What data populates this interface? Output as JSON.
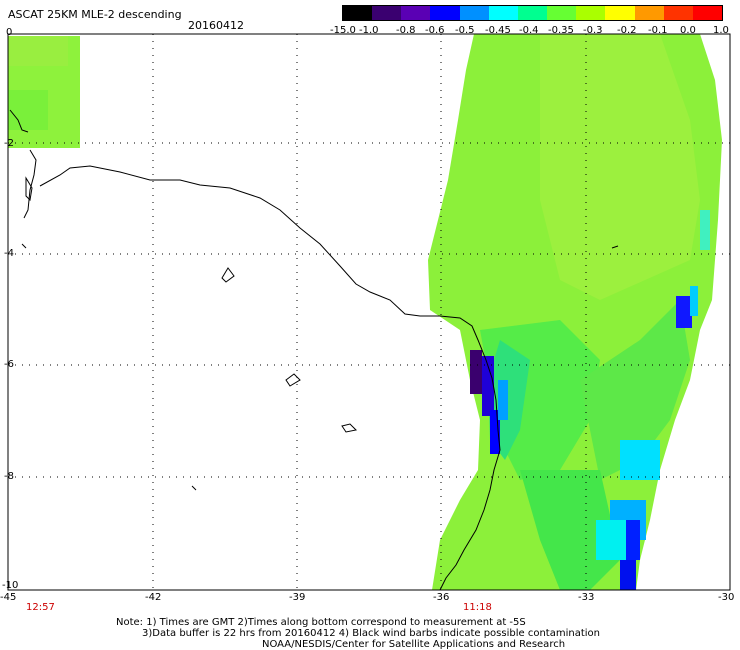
{
  "header": {
    "title": "ASCAT 25KM MLE-2 descending",
    "date": "20160412"
  },
  "colorbar": {
    "labels": [
      "-15.0",
      "-1.0",
      "-0.8",
      "-0.6",
      "-0.5",
      "-0.45",
      "-0.4",
      "-0.35",
      "-0.3",
      "-0.2",
      "-0.1",
      "0.0",
      "1.0"
    ],
    "colors": [
      "#000000",
      "#3a0070",
      "#5a00b4",
      "#0000ff",
      "#0090ff",
      "#00ffff",
      "#00ff90",
      "#66ff33",
      "#aaff00",
      "#ffff00",
      "#ff9900",
      "#ff3300",
      "#ff0000"
    ]
  },
  "map": {
    "lat_labels": [
      "0",
      "-2",
      "-4",
      "-6",
      "-8",
      "-10"
    ],
    "lon_labels": [
      "-45",
      "-42",
      "-39",
      "-36",
      "-33",
      "-30"
    ],
    "times": [
      "12:57",
      "11:18"
    ]
  },
  "notes": {
    "line1": "Note: 1) Times are GMT 2)Times along bottom correspond to measurement at -5S",
    "line2": "3)Data buffer is 22 hrs from 20160412 4) Black wind barbs indicate possible contamination",
    "line3": "NOAA/NESDIS/Center for Satellite Applications and Research"
  }
}
